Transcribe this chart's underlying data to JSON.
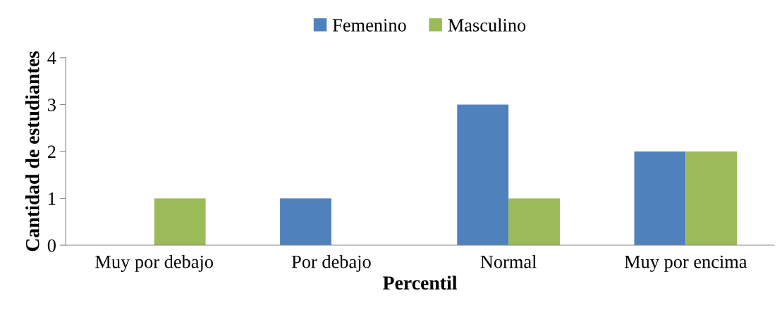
{
  "chart_data": {
    "type": "bar",
    "xlabel": "Percentil",
    "ylabel": "Cantidad de estudiantes",
    "categories": [
      "Muy por debajo",
      "Por debajo",
      "Normal",
      "Muy por encima"
    ],
    "series": [
      {
        "name": "Femenino",
        "color": "#4f81bd",
        "values": [
          0,
          1,
          3,
          2
        ]
      },
      {
        "name": "Masculino",
        "color": "#9bbb59",
        "values": [
          1,
          0,
          1,
          2
        ]
      }
    ],
    "ylim": [
      0,
      4
    ],
    "yticks": [
      0,
      1,
      2,
      3,
      4
    ],
    "grid": false,
    "legend": "top"
  }
}
